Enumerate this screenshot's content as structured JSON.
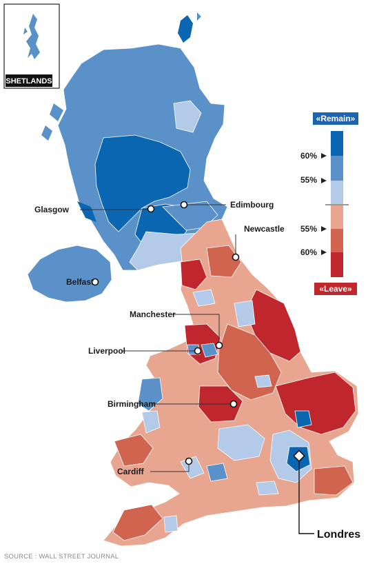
{
  "inset_label": "SHETLANDS",
  "legend": {
    "remain_label": "«Remain»",
    "leave_label": "«Leave»",
    "remain_ticks": [
      "60%",
      "55%"
    ],
    "leave_ticks": [
      "55%",
      "60%"
    ],
    "colors": {
      "remain_strong": "#0a66b0",
      "remain_mid": "#5a91c9",
      "remain_light": "#b3cbe8",
      "leave_light": "#e8a58f",
      "leave_mid": "#d0644f",
      "leave_strong": "#c0272d"
    }
  },
  "cities": [
    {
      "name": "Glasgow"
    },
    {
      "name": "Edimbourg"
    },
    {
      "name": "Newcastle"
    },
    {
      "name": "Belfast"
    },
    {
      "name": "Manchester"
    },
    {
      "name": "Liverpool"
    },
    {
      "name": "Birmingham"
    },
    {
      "name": "Cardiff"
    },
    {
      "name": "Londres"
    }
  ],
  "source": "SOURCE : WALL STREET JOURNAL"
}
